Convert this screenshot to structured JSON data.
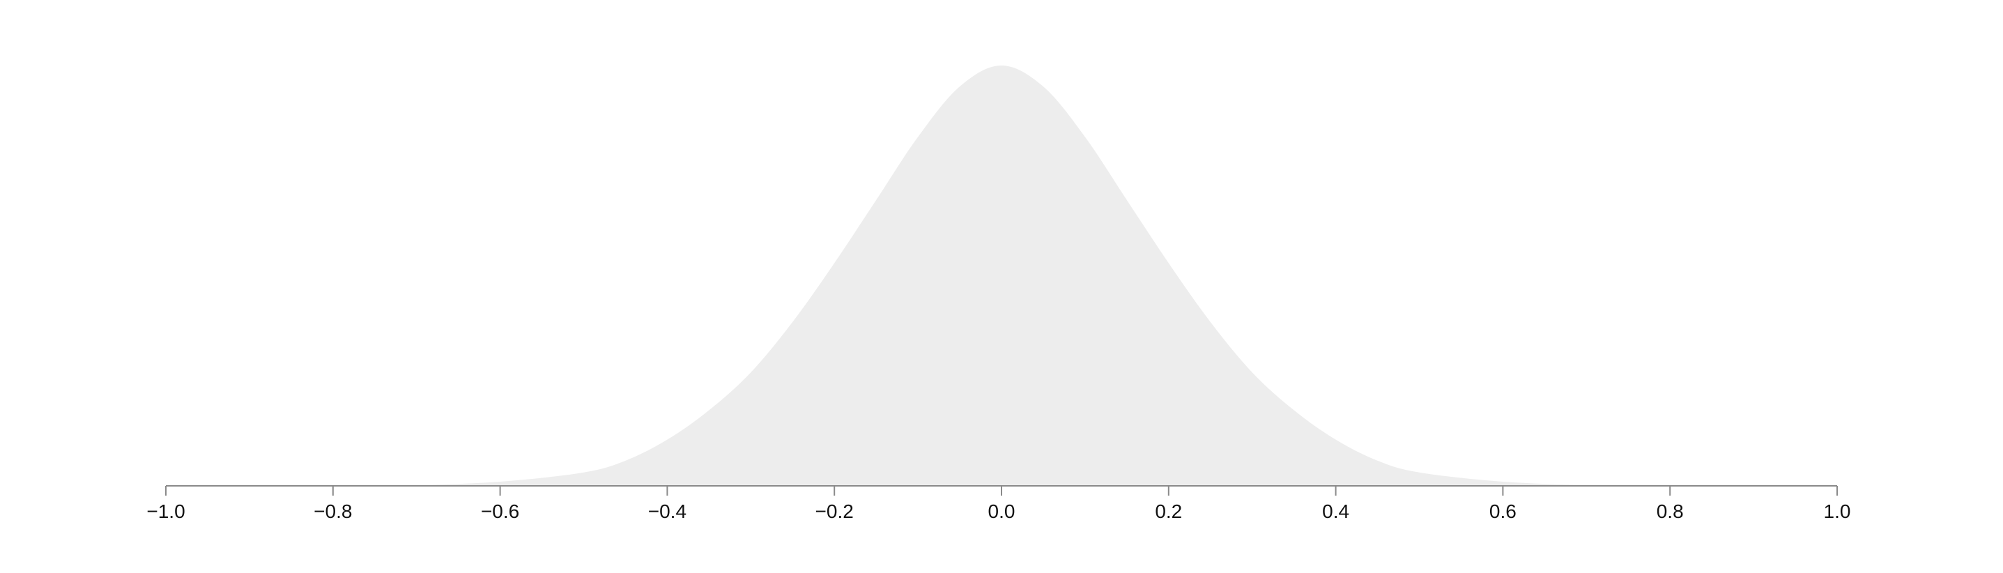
{
  "chart_data": {
    "type": "area",
    "title": "",
    "xlabel": "",
    "ylabel": "",
    "xlim": [
      -1.0,
      1.0
    ],
    "ylim": [
      0,
      1
    ],
    "grid": false,
    "fill_color": "#ededed",
    "axis_color": "#8a8a8a",
    "x_ticks": [
      "−1.0",
      "−0.8",
      "−0.6",
      "−0.4",
      "−0.2",
      "0.0",
      "0.2",
      "0.4",
      "0.6",
      "0.8",
      "1.0"
    ],
    "x_tick_values": [
      -1.0,
      -0.8,
      -0.6,
      -0.4,
      -0.2,
      0.0,
      0.2,
      0.4,
      0.6,
      0.8,
      1.0
    ],
    "x": [
      -1.0,
      -0.9,
      -0.8,
      -0.7,
      -0.6,
      -0.5,
      -0.45,
      -0.4,
      -0.35,
      -0.3,
      -0.25,
      -0.2,
      -0.15,
      -0.1,
      -0.05,
      0.0,
      0.05,
      0.1,
      0.15,
      0.2,
      0.25,
      0.3,
      0.35,
      0.4,
      0.45,
      0.5,
      0.6,
      0.7,
      0.8,
      0.9,
      1.0
    ],
    "y": [
      0.0,
      0.0,
      0.0,
      0.002,
      0.01,
      0.032,
      0.06,
      0.11,
      0.18,
      0.27,
      0.39,
      0.53,
      0.68,
      0.83,
      0.95,
      1.0,
      0.95,
      0.83,
      0.68,
      0.53,
      0.39,
      0.27,
      0.18,
      0.11,
      0.06,
      0.032,
      0.01,
      0.002,
      0.0,
      0.0,
      0.0
    ]
  }
}
